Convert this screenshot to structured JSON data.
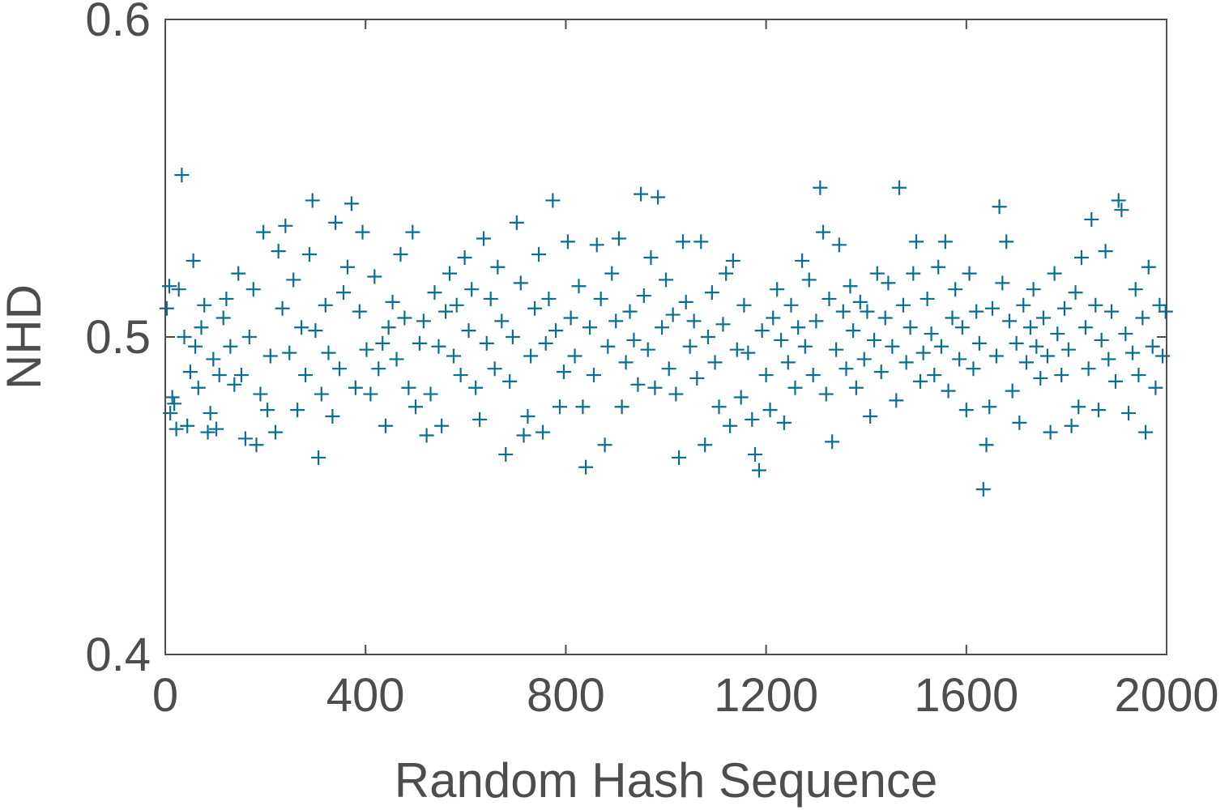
{
  "chart_data": {
    "type": "scatter",
    "title": "",
    "xlabel": "Random Hash Sequence",
    "ylabel": "NHD",
    "xlim": [
      0,
      2000
    ],
    "ylim": [
      0.4,
      0.6
    ],
    "xticks": [
      0,
      400,
      800,
      1200,
      1600,
      2000
    ],
    "xtick_labels": [
      "0",
      "400",
      "800",
      "1200",
      "1600",
      "2000"
    ],
    "yticks": [
      0.4,
      0.5,
      0.6
    ],
    "ytick_labels": [
      "0.4",
      "0.5",
      "0.6"
    ],
    "grid": false,
    "marker": "plus",
    "color": "#0a6e94",
    "series": [
      {
        "points": [
          [
            3,
            0.509
          ],
          [
            8,
            0.516
          ],
          [
            10,
            0.476
          ],
          [
            14,
            0.481
          ],
          [
            18,
            0.479
          ],
          [
            22,
            0.471
          ],
          [
            27,
            0.515
          ],
          [
            33,
            0.551
          ],
          [
            38,
            0.5
          ],
          [
            44,
            0.472
          ],
          [
            50,
            0.489
          ],
          [
            56,
            0.524
          ],
          [
            60,
            0.497
          ],
          [
            66,
            0.484
          ],
          [
            72,
            0.503
          ],
          [
            78,
            0.51
          ],
          [
            85,
            0.47
          ],
          [
            90,
            0.476
          ],
          [
            96,
            0.493
          ],
          [
            102,
            0.471
          ],
          [
            108,
            0.488
          ],
          [
            116,
            0.506
          ],
          [
            122,
            0.512
          ],
          [
            130,
            0.497
          ],
          [
            138,
            0.485
          ],
          [
            146,
            0.52
          ],
          [
            152,
            0.488
          ],
          [
            160,
            0.468
          ],
          [
            168,
            0.5
          ],
          [
            176,
            0.515
          ],
          [
            182,
            0.466
          ],
          [
            190,
            0.482
          ],
          [
            196,
            0.533
          ],
          [
            204,
            0.477
          ],
          [
            210,
            0.494
          ],
          [
            220,
            0.47
          ],
          [
            226,
            0.527
          ],
          [
            234,
            0.509
          ],
          [
            240,
            0.535
          ],
          [
            248,
            0.495
          ],
          [
            256,
            0.518
          ],
          [
            264,
            0.477
          ],
          [
            272,
            0.503
          ],
          [
            280,
            0.488
          ],
          [
            288,
            0.526
          ],
          [
            294,
            0.543
          ],
          [
            300,
            0.502
          ],
          [
            306,
            0.462
          ],
          [
            312,
            0.482
          ],
          [
            320,
            0.51
          ],
          [
            326,
            0.495
          ],
          [
            334,
            0.475
          ],
          [
            340,
            0.536
          ],
          [
            348,
            0.49
          ],
          [
            356,
            0.514
          ],
          [
            364,
            0.522
          ],
          [
            372,
            0.542
          ],
          [
            380,
            0.484
          ],
          [
            388,
            0.508
          ],
          [
            394,
            0.533
          ],
          [
            402,
            0.496
          ],
          [
            410,
            0.482
          ],
          [
            418,
            0.519
          ],
          [
            426,
            0.49
          ],
          [
            434,
            0.498
          ],
          [
            440,
            0.472
          ],
          [
            446,
            0.503
          ],
          [
            454,
            0.511
          ],
          [
            462,
            0.493
          ],
          [
            470,
            0.526
          ],
          [
            478,
            0.506
          ],
          [
            486,
            0.484
          ],
          [
            494,
            0.533
          ],
          [
            500,
            0.478
          ],
          [
            508,
            0.498
          ],
          [
            516,
            0.505
          ],
          [
            522,
            0.469
          ],
          [
            530,
            0.482
          ],
          [
            538,
            0.514
          ],
          [
            546,
            0.497
          ],
          [
            552,
            0.472
          ],
          [
            560,
            0.508
          ],
          [
            568,
            0.52
          ],
          [
            576,
            0.494
          ],
          [
            582,
            0.51
          ],
          [
            590,
            0.488
          ],
          [
            598,
            0.525
          ],
          [
            606,
            0.502
          ],
          [
            612,
            0.515
          ],
          [
            620,
            0.484
          ],
          [
            628,
            0.474
          ],
          [
            636,
            0.531
          ],
          [
            642,
            0.498
          ],
          [
            650,
            0.512
          ],
          [
            658,
            0.49
          ],
          [
            664,
            0.522
          ],
          [
            672,
            0.505
          ],
          [
            680,
            0.463
          ],
          [
            688,
            0.486
          ],
          [
            694,
            0.5
          ],
          [
            702,
            0.536
          ],
          [
            710,
            0.517
          ],
          [
            716,
            0.469
          ],
          [
            724,
            0.475
          ],
          [
            730,
            0.494
          ],
          [
            738,
            0.509
          ],
          [
            746,
            0.526
          ],
          [
            754,
            0.47
          ],
          [
            760,
            0.498
          ],
          [
            766,
            0.512
          ],
          [
            774,
            0.543
          ],
          [
            780,
            0.502
          ],
          [
            788,
            0.478
          ],
          [
            796,
            0.489
          ],
          [
            804,
            0.53
          ],
          [
            810,
            0.506
          ],
          [
            818,
            0.494
          ],
          [
            826,
            0.516
          ],
          [
            834,
            0.478
          ],
          [
            840,
            0.459
          ],
          [
            848,
            0.503
          ],
          [
            856,
            0.488
          ],
          [
            862,
            0.529
          ],
          [
            870,
            0.512
          ],
          [
            878,
            0.466
          ],
          [
            884,
            0.497
          ],
          [
            892,
            0.52
          ],
          [
            900,
            0.505
          ],
          [
            906,
            0.531
          ],
          [
            912,
            0.478
          ],
          [
            920,
            0.492
          ],
          [
            928,
            0.508
          ],
          [
            936,
            0.499
          ],
          [
            944,
            0.485
          ],
          [
            950,
            0.545
          ],
          [
            956,
            0.513
          ],
          [
            964,
            0.496
          ],
          [
            970,
            0.525
          ],
          [
            978,
            0.484
          ],
          [
            984,
            0.544
          ],
          [
            992,
            0.503
          ],
          [
            1000,
            0.518
          ],
          [
            1006,
            0.49
          ],
          [
            1014,
            0.507
          ],
          [
            1020,
            0.482
          ],
          [
            1026,
            0.462
          ],
          [
            1034,
            0.53
          ],
          [
            1040,
            0.511
          ],
          [
            1048,
            0.497
          ],
          [
            1056,
            0.505
          ],
          [
            1062,
            0.487
          ],
          [
            1070,
            0.53
          ],
          [
            1078,
            0.466
          ],
          [
            1084,
            0.5
          ],
          [
            1092,
            0.514
          ],
          [
            1098,
            0.492
          ],
          [
            1106,
            0.478
          ],
          [
            1114,
            0.504
          ],
          [
            1120,
            0.52
          ],
          [
            1128,
            0.472
          ],
          [
            1134,
            0.524
          ],
          [
            1142,
            0.496
          ],
          [
            1150,
            0.481
          ],
          [
            1156,
            0.51
          ],
          [
            1164,
            0.495
          ],
          [
            1172,
            0.474
          ],
          [
            1178,
            0.463
          ],
          [
            1186,
            0.458
          ],
          [
            1192,
            0.502
          ],
          [
            1200,
            0.488
          ],
          [
            1208,
            0.477
          ],
          [
            1214,
            0.506
          ],
          [
            1222,
            0.515
          ],
          [
            1230,
            0.499
          ],
          [
            1236,
            0.473
          ],
          [
            1244,
            0.492
          ],
          [
            1250,
            0.51
          ],
          [
            1258,
            0.484
          ],
          [
            1264,
            0.503
          ],
          [
            1272,
            0.524
          ],
          [
            1278,
            0.497
          ],
          [
            1286,
            0.518
          ],
          [
            1294,
            0.488
          ],
          [
            1300,
            0.505
          ],
          [
            1308,
            0.547
          ],
          [
            1314,
            0.533
          ],
          [
            1320,
            0.482
          ],
          [
            1326,
            0.512
          ],
          [
            1332,
            0.467
          ],
          [
            1340,
            0.496
          ],
          [
            1346,
            0.529
          ],
          [
            1354,
            0.508
          ],
          [
            1360,
            0.49
          ],
          [
            1368,
            0.516
          ],
          [
            1374,
            0.502
          ],
          [
            1380,
            0.484
          ],
          [
            1388,
            0.511
          ],
          [
            1396,
            0.493
          ],
          [
            1402,
            0.508
          ],
          [
            1408,
            0.475
          ],
          [
            1416,
            0.499
          ],
          [
            1422,
            0.52
          ],
          [
            1430,
            0.489
          ],
          [
            1438,
            0.506
          ],
          [
            1444,
            0.517
          ],
          [
            1452,
            0.497
          ],
          [
            1460,
            0.48
          ],
          [
            1466,
            0.547
          ],
          [
            1474,
            0.51
          ],
          [
            1480,
            0.492
          ],
          [
            1488,
            0.503
          ],
          [
            1494,
            0.52
          ],
          [
            1500,
            0.53
          ],
          [
            1508,
            0.486
          ],
          [
            1514,
            0.495
          ],
          [
            1522,
            0.512
          ],
          [
            1530,
            0.501
          ],
          [
            1536,
            0.488
          ],
          [
            1544,
            0.522
          ],
          [
            1550,
            0.497
          ],
          [
            1558,
            0.53
          ],
          [
            1564,
            0.483
          ],
          [
            1572,
            0.506
          ],
          [
            1578,
            0.515
          ],
          [
            1586,
            0.493
          ],
          [
            1592,
            0.503
          ],
          [
            1600,
            0.477
          ],
          [
            1606,
            0.52
          ],
          [
            1614,
            0.49
          ],
          [
            1620,
            0.508
          ],
          [
            1626,
            0.498
          ],
          [
            1634,
            0.452
          ],
          [
            1640,
            0.466
          ],
          [
            1646,
            0.478
          ],
          [
            1652,
            0.509
          ],
          [
            1660,
            0.494
          ],
          [
            1666,
            0.541
          ],
          [
            1672,
            0.517
          ],
          [
            1680,
            0.53
          ],
          [
            1686,
            0.505
          ],
          [
            1692,
            0.483
          ],
          [
            1700,
            0.498
          ],
          [
            1706,
            0.473
          ],
          [
            1714,
            0.51
          ],
          [
            1720,
            0.492
          ],
          [
            1728,
            0.503
          ],
          [
            1734,
            0.515
          ],
          [
            1740,
            0.497
          ],
          [
            1748,
            0.487
          ],
          [
            1754,
            0.506
          ],
          [
            1762,
            0.494
          ],
          [
            1768,
            0.47
          ],
          [
            1776,
            0.52
          ],
          [
            1782,
            0.501
          ],
          [
            1790,
            0.488
          ],
          [
            1796,
            0.509
          ],
          [
            1804,
            0.496
          ],
          [
            1810,
            0.472
          ],
          [
            1818,
            0.514
          ],
          [
            1824,
            0.478
          ],
          [
            1830,
            0.525
          ],
          [
            1838,
            0.503
          ],
          [
            1844,
            0.49
          ],
          [
            1850,
            0.537
          ],
          [
            1858,
            0.51
          ],
          [
            1864,
            0.477
          ],
          [
            1870,
            0.499
          ],
          [
            1878,
            0.527
          ],
          [
            1884,
            0.493
          ],
          [
            1890,
            0.508
          ],
          [
            1898,
            0.486
          ],
          [
            1904,
            0.543
          ],
          [
            1910,
            0.54
          ],
          [
            1918,
            0.501
          ],
          [
            1924,
            0.476
          ],
          [
            1932,
            0.495
          ],
          [
            1938,
            0.515
          ],
          [
            1944,
            0.488
          ],
          [
            1952,
            0.506
          ],
          [
            1958,
            0.47
          ],
          [
            1964,
            0.522
          ],
          [
            1972,
            0.497
          ],
          [
            1978,
            0.484
          ],
          [
            1986,
            0.51
          ],
          [
            1992,
            0.494
          ],
          [
            1998,
            0.508
          ]
        ]
      }
    ]
  }
}
